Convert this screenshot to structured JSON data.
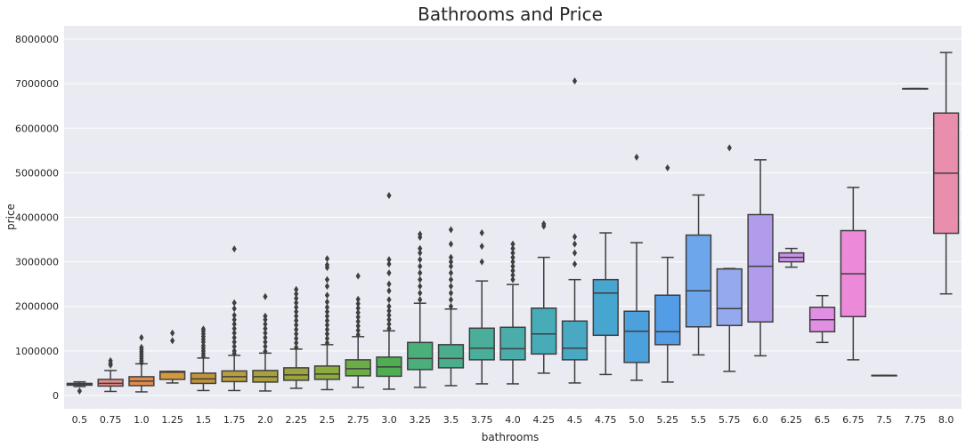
{
  "chart_data": {
    "type": "box",
    "title": "Bathrooms and Price",
    "xlabel": "bathrooms",
    "ylabel": "price",
    "ylim": [
      -300000,
      8300000
    ],
    "yticks": [
      0,
      1000000,
      2000000,
      3000000,
      4000000,
      5000000,
      6000000,
      7000000,
      8000000
    ],
    "ytick_labels": [
      "0",
      "1000000",
      "2000000",
      "3000000",
      "4000000",
      "5000000",
      "6000000",
      "7000000",
      "8000000"
    ],
    "grid": true,
    "colors": {
      "background": "#eaeaf2",
      "grid": "#ffffff",
      "outline": "#3f3f3f"
    },
    "categories": [
      "0.5",
      "0.75",
      "1.0",
      "1.25",
      "1.5",
      "1.75",
      "2.0",
      "2.25",
      "2.5",
      "2.75",
      "3.0",
      "3.25",
      "3.5",
      "3.75",
      "4.0",
      "4.25",
      "4.5",
      "4.75",
      "5.0",
      "5.25",
      "5.5",
      "5.75",
      "6.0",
      "6.25",
      "6.5",
      "6.75",
      "7.5",
      "7.75",
      "8.0"
    ],
    "boxes": [
      {
        "category": "0.5",
        "color": "#3a7ac6",
        "whislo": 200000,
        "q1": 230000,
        "median": 255000,
        "q3": 270000,
        "whishi": 305000,
        "fliers": [
          100000
        ]
      },
      {
        "category": "0.75",
        "color": "#e98a89",
        "whislo": 90000,
        "q1": 210000,
        "median": 270000,
        "q3": 360000,
        "whishi": 560000,
        "fliers": [
          680000,
          720000,
          780000
        ]
      },
      {
        "category": "1.0",
        "color": "#e08b4e",
        "whislo": 80000,
        "q1": 220000,
        "median": 320000,
        "q3": 420000,
        "whishi": 710000,
        "fliers": [
          730000,
          780000,
          830000,
          880000,
          930000,
          980000,
          1030000,
          1080000,
          1300000
        ]
      },
      {
        "category": "1.25",
        "color": "#d39a3c",
        "whislo": 280000,
        "q1": 360000,
        "median": 520000,
        "q3": 540000,
        "whishi": 540000,
        "fliers": [
          1230000,
          1400000
        ]
      },
      {
        "category": "1.5",
        "color": "#c2953d",
        "whislo": 110000,
        "q1": 270000,
        "median": 370000,
        "q3": 500000,
        "whishi": 840000,
        "fliers": [
          880000,
          940000,
          1000000,
          1060000,
          1120000,
          1200000,
          1260000,
          1320000,
          1380000,
          1440000,
          1490000
        ]
      },
      {
        "category": "1.75",
        "color": "#b89e3e",
        "whislo": 110000,
        "q1": 310000,
        "median": 420000,
        "q3": 550000,
        "whishi": 900000,
        "fliers": [
          940000,
          1000000,
          1100000,
          1200000,
          1300000,
          1400000,
          1500000,
          1600000,
          1700000,
          1800000,
          1950000,
          2080000,
          3290000
        ]
      },
      {
        "category": "2.0",
        "color": "#a9a03d",
        "whislo": 100000,
        "q1": 300000,
        "median": 420000,
        "q3": 560000,
        "whishi": 950000,
        "fliers": [
          990000,
          1100000,
          1200000,
          1300000,
          1400000,
          1500000,
          1600000,
          1700000,
          1780000,
          2220000
        ]
      },
      {
        "category": "2.25",
        "color": "#9ba53c",
        "whislo": 160000,
        "q1": 340000,
        "median": 460000,
        "q3": 620000,
        "whishi": 1040000,
        "fliers": [
          1080000,
          1180000,
          1280000,
          1380000,
          1480000,
          1580000,
          1680000,
          1780000,
          1880000,
          1980000,
          2080000,
          2180000,
          2280000,
          2380000
        ]
      },
      {
        "category": "2.5",
        "color": "#8cad3e",
        "whislo": 130000,
        "q1": 360000,
        "median": 480000,
        "q3": 660000,
        "whishi": 1140000,
        "fliers": [
          1180000,
          1280000,
          1380000,
          1480000,
          1580000,
          1680000,
          1780000,
          1880000,
          1980000,
          2100000,
          2250000,
          2450000,
          2600000,
          2870000,
          2930000,
          3070000
        ]
      },
      {
        "category": "2.75",
        "color": "#6cae45",
        "whislo": 180000,
        "q1": 440000,
        "median": 600000,
        "q3": 800000,
        "whishi": 1320000,
        "fliers": [
          1360000,
          1460000,
          1560000,
          1660000,
          1760000,
          1860000,
          1960000,
          2060000,
          2160000,
          2680000
        ]
      },
      {
        "category": "3.0",
        "color": "#4fae51",
        "whislo": 140000,
        "q1": 430000,
        "median": 640000,
        "q3": 860000,
        "whishi": 1450000,
        "fliers": [
          1500000,
          1600000,
          1700000,
          1800000,
          1900000,
          2000000,
          2150000,
          2350000,
          2500000,
          2750000,
          2950000,
          3050000,
          4490000
        ]
      },
      {
        "category": "3.25",
        "color": "#4aaf7a",
        "whislo": 180000,
        "q1": 580000,
        "median": 830000,
        "q3": 1190000,
        "whishi": 2070000,
        "fliers": [
          2150000,
          2300000,
          2450000,
          2600000,
          2750000,
          2900000,
          3050000,
          3200000,
          3300000,
          3550000,
          3620000
        ]
      },
      {
        "category": "3.5",
        "color": "#4aae8c",
        "whislo": 220000,
        "q1": 620000,
        "median": 830000,
        "q3": 1140000,
        "whishi": 1940000,
        "fliers": [
          2000000,
          2150000,
          2300000,
          2450000,
          2600000,
          2750000,
          2900000,
          3000000,
          3100000,
          3400000,
          3720000
        ]
      },
      {
        "category": "3.75",
        "color": "#4aae9b",
        "whislo": 260000,
        "q1": 800000,
        "median": 1060000,
        "q3": 1510000,
        "whishi": 2570000,
        "fliers": [
          3000000,
          3350000,
          3650000
        ]
      },
      {
        "category": "4.0",
        "color": "#4aadaa",
        "whislo": 260000,
        "q1": 800000,
        "median": 1050000,
        "q3": 1530000,
        "whishi": 2490000,
        "fliers": [
          2600000,
          2700000,
          2800000,
          2900000,
          3000000,
          3100000,
          3200000,
          3300000,
          3400000
        ]
      },
      {
        "category": "4.25",
        "color": "#47abb8",
        "whislo": 500000,
        "q1": 930000,
        "median": 1380000,
        "q3": 1960000,
        "whishi": 3100000,
        "fliers": [
          3800000,
          3850000
        ]
      },
      {
        "category": "4.5",
        "color": "#49a9c3",
        "whislo": 280000,
        "q1": 800000,
        "median": 1060000,
        "q3": 1670000,
        "whishi": 2600000,
        "fliers": [
          2950000,
          3200000,
          3400000,
          3560000,
          7060000
        ]
      },
      {
        "category": "4.75",
        "color": "#47a6cf",
        "whislo": 470000,
        "q1": 1350000,
        "median": 2300000,
        "q3": 2600000,
        "whishi": 3650000,
        "fliers": []
      },
      {
        "category": "5.0",
        "color": "#4aa1dc",
        "whislo": 340000,
        "q1": 740000,
        "median": 1440000,
        "q3": 1890000,
        "whishi": 3430000,
        "fliers": [
          5350000
        ]
      },
      {
        "category": "5.25",
        "color": "#539ce6",
        "whislo": 300000,
        "q1": 1140000,
        "median": 1430000,
        "q3": 2250000,
        "whishi": 3100000,
        "fliers": [
          5110000
        ]
      },
      {
        "category": "5.5",
        "color": "#6ea6ec",
        "whislo": 910000,
        "q1": 1540000,
        "median": 2350000,
        "q3": 3600000,
        "whishi": 4500000,
        "fliers": []
      },
      {
        "category": "5.75",
        "color": "#95aaee",
        "whislo": 540000,
        "q1": 1570000,
        "median": 1950000,
        "q3": 2840000,
        "whishi": 2850000,
        "fliers": [
          5560000
        ]
      },
      {
        "category": "6.0",
        "color": "#b19ceb",
        "whislo": 890000,
        "q1": 1650000,
        "median": 2900000,
        "q3": 4060000,
        "whishi": 5290000,
        "fliers": []
      },
      {
        "category": "6.25",
        "color": "#ca92ea",
        "whislo": 2880000,
        "q1": 3000000,
        "median": 3100000,
        "q3": 3200000,
        "whishi": 3300000,
        "fliers": []
      },
      {
        "category": "6.5",
        "color": "#e08fe3",
        "whislo": 1190000,
        "q1": 1430000,
        "median": 1700000,
        "q3": 1980000,
        "whishi": 2240000,
        "fliers": []
      },
      {
        "category": "6.75",
        "color": "#ec8ad9",
        "whislo": 800000,
        "q1": 1770000,
        "median": 2730000,
        "q3": 3700000,
        "whishi": 4670000,
        "fliers": []
      },
      {
        "category": "7.5",
        "color": "#ee94c4",
        "whislo": 450000,
        "q1": 450000,
        "median": 450000,
        "q3": 450000,
        "whishi": 450000,
        "fliers": []
      },
      {
        "category": "7.75",
        "color": "#ee94b4",
        "whislo": 6890000,
        "q1": 6890000,
        "median": 6890000,
        "q3": 6890000,
        "whishi": 6890000,
        "fliers": []
      },
      {
        "category": "8.0",
        "color": "#e98ead",
        "whislo": 2280000,
        "q1": 3640000,
        "median": 4990000,
        "q3": 6340000,
        "whishi": 7700000,
        "fliers": []
      }
    ]
  }
}
